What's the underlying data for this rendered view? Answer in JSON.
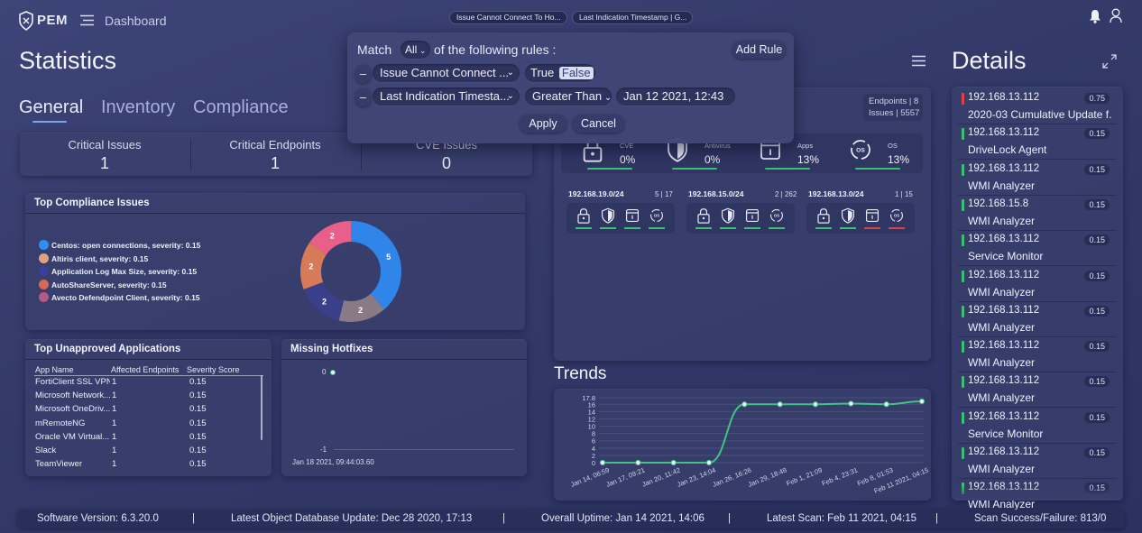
{
  "app": {
    "logo": "PEM",
    "breadcrumb": "Dashboard"
  },
  "top_chips": [
    "Issue Cannot Connect To Ho...",
    "Last Indication Timestamp | G..."
  ],
  "statistics": {
    "title": "Statistics",
    "tabs": [
      "General",
      "Inventory",
      "Compliance"
    ],
    "active_tab": "General",
    "cards": [
      {
        "label": "Critical Issues",
        "value": "1"
      },
      {
        "label": "Critical Endpoints",
        "value": "1"
      },
      {
        "label": "CVE Issues",
        "value": "0"
      }
    ]
  },
  "filter": {
    "match_label": "Match",
    "match_value": "All",
    "match_suffix": "of the following rules :",
    "add_rule": "Add Rule",
    "rule1": {
      "field": "Issue Cannot Connect ...",
      "opt_true": "True",
      "opt_false": "False",
      "selected": "False"
    },
    "rule2": {
      "field": "Last Indication Timesta...",
      "operator": "Greater Than",
      "value": "Jan 12 2021, 12:43"
    },
    "remove_symbol": "–",
    "apply": "Apply",
    "cancel": "Cancel"
  },
  "compliance": {
    "title": "Top Compliance Issues",
    "legend": [
      {
        "label": "Centos: open connections, severity: 0.15",
        "color": "#2f8ff0"
      },
      {
        "label": "Altiris client, severity: 0.15",
        "color": "#e0a27a"
      },
      {
        "label": "Application Log Max Size, severity: 0.15",
        "color": "#3a3f99"
      },
      {
        "label": "AutoShareServer, severity: 0.15",
        "color": "#d66a56"
      },
      {
        "label": "Avecto Defendpoint Client, severity: 0.15",
        "color": "#b45a86"
      }
    ],
    "donut": [
      {
        "value": 5,
        "color": "#2f86e8",
        "label": "5"
      },
      {
        "value": 2,
        "color": "#8a7a86",
        "label": "2"
      },
      {
        "value": 2,
        "color": "#3a3f8a",
        "label": "2"
      },
      {
        "value": 2,
        "color": "#d67a58",
        "label": "2"
      },
      {
        "value": 2,
        "color": "#e8608a",
        "label": "2"
      }
    ]
  },
  "unapproved": {
    "title": "Top Unapproved Applications",
    "headers": [
      "App Name",
      "Affected Endpoints",
      "Severity Score"
    ],
    "rows": [
      [
        "FortiClient SSL VPN",
        "1",
        "0.15"
      ],
      [
        "Microsoft Network...",
        "1",
        "0.15"
      ],
      [
        "Microsoft OneDriv...",
        "1",
        "0.15"
      ],
      [
        "mRemoteNG",
        "1",
        "0.15"
      ],
      [
        "Oracle VM Virtual...",
        "1",
        "0.15"
      ],
      [
        "Slack",
        "1",
        "0.15"
      ],
      [
        "TeamViewer",
        "1",
        "0.15"
      ]
    ]
  },
  "hotfixes": {
    "title": "Missing Hotfixes",
    "y_top": "0",
    "y_bottom": "-1",
    "x_label": "Jan 18 2021, 09:44:03.60"
  },
  "endpoints": {
    "count_text": "Endpoints | 8",
    "issues_text": "Issues | 5557",
    "summary": [
      {
        "label": "CVE",
        "value": "0%",
        "icon": "lock-icon"
      },
      {
        "label": "Antivirus",
        "value": "0%",
        "icon": "shield-icon"
      },
      {
        "label": "Apps",
        "value": "13%",
        "icon": "apps-icon"
      },
      {
        "label": "OS",
        "value": "13%",
        "icon": "os-icon"
      }
    ],
    "subnets": [
      {
        "name": "192.168.19.0/24",
        "count": "5 | 17"
      },
      {
        "name": "192.168.15.0/24",
        "count": "2 | 262"
      },
      {
        "name": "192.168.13.0/24",
        "count": "1 | 15"
      }
    ]
  },
  "trends": {
    "title": "Trends"
  },
  "chart_data": {
    "type": "line",
    "title": "Trends",
    "x": [
      "Jan 14, 06:59",
      "Jan 17, 09:21",
      "Jan 20, 11:42",
      "Jan 23, 14:04",
      "Jan 26, 16:26",
      "Jan 29, 18:48",
      "Feb 1, 21:09",
      "Feb 4, 23:31",
      "Feb 8, 01:53",
      "Feb 11 2021, 04:15"
    ],
    "series": [
      {
        "values": [
          0,
          0,
          0,
          0,
          16,
          16,
          16,
          16.2,
          16,
          16.8
        ]
      }
    ],
    "y_ticks": [
      "17.8",
      "16",
      "14",
      "12",
      "10",
      "8",
      "6",
      "4",
      "2",
      "0"
    ],
    "ylim": [
      0,
      17.8
    ],
    "grid": true,
    "line_color": "#43c285"
  },
  "details": {
    "title": "Details",
    "items": [
      {
        "ip": "192.168.13.112",
        "name": "2020-03 Cumulative Update f...",
        "score": "0.75",
        "color": "#e0404a"
      },
      {
        "ip": "192.168.13.112",
        "name": "DriveLock Agent",
        "score": "0.15",
        "color": "#3cbf74"
      },
      {
        "ip": "192.168.13.112",
        "name": "WMI Analyzer",
        "score": "0.15",
        "color": "#3cbf74"
      },
      {
        "ip": "192.168.15.8",
        "name": "WMI Analyzer",
        "score": "0.15",
        "color": "#3cbf74"
      },
      {
        "ip": "192.168.13.112",
        "name": "Service Monitor",
        "score": "0.15",
        "color": "#3cbf74"
      },
      {
        "ip": "192.168.13.112",
        "name": "WMI Analyzer",
        "score": "0.15",
        "color": "#3cbf74"
      },
      {
        "ip": "192.168.13.112",
        "name": "WMI Analyzer",
        "score": "0.15",
        "color": "#3cbf74"
      },
      {
        "ip": "192.168.13.112",
        "name": "WMI Analyzer",
        "score": "0.15",
        "color": "#3cbf74"
      },
      {
        "ip": "192.168.13.112",
        "name": "WMI Analyzer",
        "score": "0.15",
        "color": "#3cbf74"
      },
      {
        "ip": "192.168.13.112",
        "name": "Service Monitor",
        "score": "0.15",
        "color": "#3cbf74"
      },
      {
        "ip": "192.168.13.112",
        "name": "WMI Analyzer",
        "score": "0.15",
        "color": "#3cbf74"
      },
      {
        "ip": "192.168.13.112",
        "name": "WMI Analyzer",
        "score": "0.15",
        "color": "#3cbf74"
      }
    ]
  },
  "footer": {
    "version": "Software Version: 6.3.20.0",
    "db_update": "Latest Object Database Update: Dec 28 2020, 17:13",
    "uptime": "Overall Uptime: Jan 14 2021, 14:06",
    "scan": "Latest Scan: Feb 11 2021, 04:15",
    "success": "Scan Success/Failure: 813/0",
    "separator": "|"
  }
}
